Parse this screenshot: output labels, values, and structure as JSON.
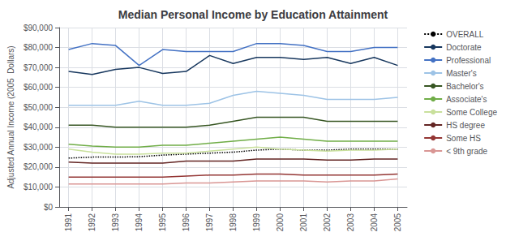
{
  "chart_data": {
    "type": "line",
    "title": "Median Personal Income by Education Attainment",
    "ylabel": "Adjusted Annual Income (2005  Dollars)",
    "x": [
      1991,
      1992,
      1993,
      1994,
      1995,
      1996,
      1997,
      1998,
      1999,
      2000,
      2001,
      2002,
      2003,
      2004,
      2005
    ],
    "xlim": [
      1990.6,
      2005.4
    ],
    "xticks": [
      1991,
      1992,
      1993,
      1994,
      1995,
      1996,
      1997,
      1998,
      1999,
      2000,
      2001,
      2002,
      2003,
      2004,
      2005
    ],
    "ylim": [
      0,
      90000
    ],
    "yticks": [
      {
        "value": 0,
        "label": "$0"
      },
      {
        "value": 10000,
        "label": "$10,000"
      },
      {
        "value": 20000,
        "label": "$20,000"
      },
      {
        "value": 30000,
        "label": "$30,000"
      },
      {
        "value": 40000,
        "label": "$40,000"
      },
      {
        "value": 50000,
        "label": "$50,000"
      },
      {
        "value": 60000,
        "label": "$60,000"
      },
      {
        "value": 70000,
        "label": "$70,000"
      },
      {
        "value": 80000,
        "label": "$80,000"
      },
      {
        "value": 90000,
        "label": "$90,000"
      }
    ],
    "grid": true,
    "legend": "right",
    "series": [
      {
        "name": "OVERALL",
        "color": "#000000",
        "line_style": "dotted",
        "values": [
          24500,
          25000,
          25000,
          25200,
          26000,
          26500,
          27000,
          27500,
          28500,
          29000,
          28500,
          28500,
          29000,
          29000,
          29000
        ]
      },
      {
        "name": "Doctorate",
        "color": "#17375E",
        "line_style": "solid",
        "values": [
          68000,
          66500,
          69000,
          70000,
          67000,
          68000,
          76000,
          72000,
          75000,
          75000,
          74000,
          75000,
          72000,
          75000,
          71000
        ]
      },
      {
        "name": "Professional",
        "color": "#4472C4",
        "line_style": "solid",
        "values": [
          79000,
          82000,
          81000,
          71000,
          79000,
          78000,
          78000,
          78000,
          82000,
          82000,
          81000,
          78000,
          78000,
          80000,
          80000
        ]
      },
      {
        "name": "Master's",
        "color": "#9DC3E6",
        "line_style": "solid",
        "values": [
          51000,
          51000,
          51000,
          53000,
          51000,
          51000,
          52000,
          56000,
          58000,
          57000,
          56000,
          54000,
          54000,
          54000,
          55000
        ]
      },
      {
        "name": "Bachelor's",
        "color": "#375623",
        "line_style": "solid",
        "values": [
          41000,
          41000,
          40000,
          40000,
          40000,
          40000,
          41000,
          43000,
          45000,
          45000,
          45000,
          43000,
          43000,
          43000,
          43000
        ]
      },
      {
        "name": "Associate's",
        "color": "#70AD47",
        "line_style": "solid",
        "values": [
          31500,
          30500,
          30000,
          30000,
          31000,
          31000,
          32000,
          33000,
          34000,
          35000,
          34000,
          33000,
          33000,
          33000,
          33000
        ]
      },
      {
        "name": "Some College",
        "color": "#C9E09C",
        "line_style": "solid",
        "values": [
          29000,
          27500,
          26500,
          26500,
          27000,
          27000,
          28000,
          29000,
          30000,
          29000,
          28500,
          28000,
          28500,
          28500,
          29000
        ]
      },
      {
        "name": "HS degree",
        "color": "#632523",
        "line_style": "solid",
        "values": [
          22500,
          22000,
          22000,
          22000,
          22000,
          23000,
          23000,
          23000,
          24000,
          24000,
          24000,
          23500,
          23500,
          24000,
          24000
        ]
      },
      {
        "name": "Some HS",
        "color": "#943634",
        "line_style": "solid",
        "values": [
          15000,
          15000,
          15000,
          15000,
          15000,
          15500,
          16000,
          16000,
          16500,
          16500,
          16000,
          16000,
          16000,
          16000,
          16500
        ]
      },
      {
        "name": "< 9th grade",
        "color": "#D99694",
        "line_style": "solid",
        "values": [
          11500,
          11500,
          11500,
          11500,
          11500,
          12000,
          12000,
          12500,
          13000,
          13000,
          13000,
          12500,
          13000,
          13000,
          14000
        ]
      }
    ]
  }
}
